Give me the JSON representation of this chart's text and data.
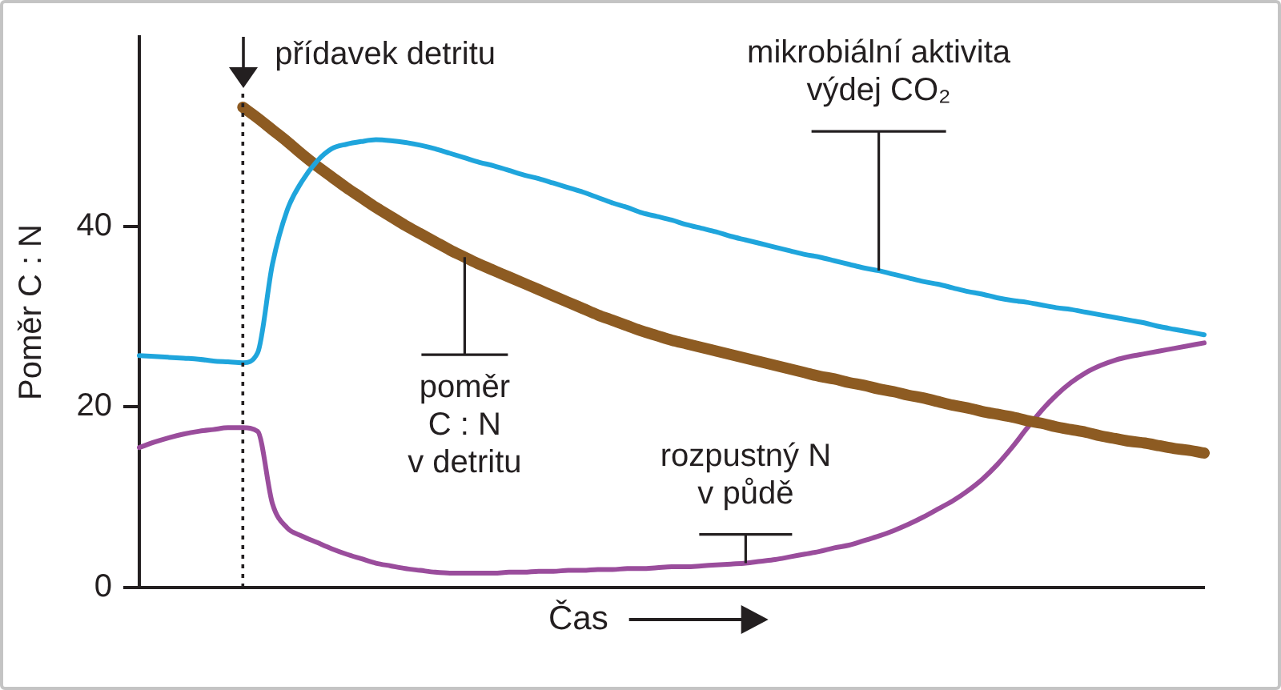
{
  "chart_data": {
    "type": "line",
    "xlabel": "Čas",
    "ylabel": "Poměr C : N",
    "categories": [
      null,
      null,
      null,
      null,
      null,
      null,
      null,
      null,
      null,
      null,
      null,
      null,
      null,
      null,
      null,
      null,
      null,
      null,
      null,
      null,
      null,
      null,
      null,
      null,
      null,
      null,
      null,
      null,
      null,
      null,
      null,
      null,
      null,
      null,
      null,
      null,
      null,
      null,
      null,
      null,
      null,
      null,
      null,
      null,
      null,
      null,
      null,
      null,
      null,
      null,
      null,
      null,
      null,
      null,
      null,
      null,
      null,
      null,
      null,
      null,
      null,
      null,
      null,
      null,
      null,
      null,
      null,
      null,
      null,
      null,
      null,
      null,
      null
    ],
    "ylim": [
      0,
      61
    ],
    "yticks": [
      0,
      20,
      40
    ],
    "tick_labels": "y",
    "series": [
      {
        "name": "mikrobiální aktivita\nvýdej CO₂",
        "color": "#1fa5dc",
        "values": [
          25.7,
          25.6,
          25.5,
          25.4,
          25.3,
          25.1,
          25.0,
          24.9,
          26.0,
          35.8,
          41.8,
          45.0,
          47.2,
          48.6,
          49.1,
          49.4,
          49.6,
          49.5,
          49.3,
          49.0,
          48.6,
          48.1,
          47.6,
          47.1,
          46.7,
          46.2,
          45.7,
          45.3,
          44.8,
          44.3,
          43.8,
          43.2,
          42.6,
          42.1,
          41.5,
          41.1,
          40.7,
          40.2,
          39.8,
          39.4,
          38.9,
          38.5,
          38.1,
          37.7,
          37.3,
          36.9,
          36.6,
          36.2,
          35.8,
          35.4,
          35.1,
          34.7,
          34.3,
          33.9,
          33.6,
          33.2,
          32.8,
          32.5,
          32.1,
          31.8,
          31.6,
          31.3,
          31.0,
          30.8,
          30.5,
          30.2,
          29.9,
          29.6,
          29.3,
          28.9,
          28.6,
          28.3,
          28.0
        ]
      },
      {
        "name": "poměr\nC : N\nv detritu",
        "color": "#8d5b22",
        "values": [
          null,
          null,
          null,
          null,
          null,
          null,
          null,
          53.2,
          52.0,
          50.7,
          49.4,
          48.0,
          46.7,
          45.5,
          44.3,
          43.2,
          42.1,
          41.1,
          40.1,
          39.2,
          38.3,
          37.4,
          36.6,
          35.8,
          35.1,
          34.4,
          33.7,
          33.0,
          32.3,
          31.6,
          30.9,
          30.2,
          29.6,
          29.0,
          28.4,
          27.9,
          27.4,
          27.0,
          26.6,
          26.2,
          25.8,
          25.4,
          25.0,
          24.6,
          24.2,
          23.8,
          23.4,
          23.1,
          22.7,
          22.4,
          22.0,
          21.7,
          21.3,
          21.0,
          20.6,
          20.2,
          19.9,
          19.5,
          19.2,
          18.9,
          18.5,
          18.2,
          17.8,
          17.5,
          17.2,
          16.8,
          16.5,
          16.2,
          16.0,
          15.7,
          15.4,
          15.2,
          14.9
        ]
      },
      {
        "name": "rozpustný N\nv půdě",
        "color": "#9a4d9c",
        "values": [
          15.5,
          16.1,
          16.6,
          17.0,
          17.3,
          17.5,
          17.7,
          17.7,
          17.3,
          9.3,
          6.6,
          5.7,
          5.0,
          4.3,
          3.7,
          3.2,
          2.7,
          2.4,
          2.1,
          1.9,
          1.7,
          1.6,
          1.6,
          1.6,
          1.6,
          1.7,
          1.7,
          1.8,
          1.8,
          1.9,
          1.9,
          2.0,
          2.0,
          2.1,
          2.1,
          2.2,
          2.3,
          2.3,
          2.4,
          2.5,
          2.6,
          2.7,
          2.9,
          3.1,
          3.4,
          3.7,
          4.0,
          4.4,
          4.7,
          5.2,
          5.7,
          6.3,
          7.0,
          7.8,
          8.7,
          9.6,
          10.7,
          12.0,
          13.6,
          15.5,
          17.6,
          19.6,
          21.3,
          22.7,
          23.8,
          24.6,
          25.2,
          25.6,
          25.9,
          26.2,
          26.5,
          26.8,
          27.1
        ]
      }
    ],
    "annotations": [
      "přídavek detritu"
    ]
  }
}
